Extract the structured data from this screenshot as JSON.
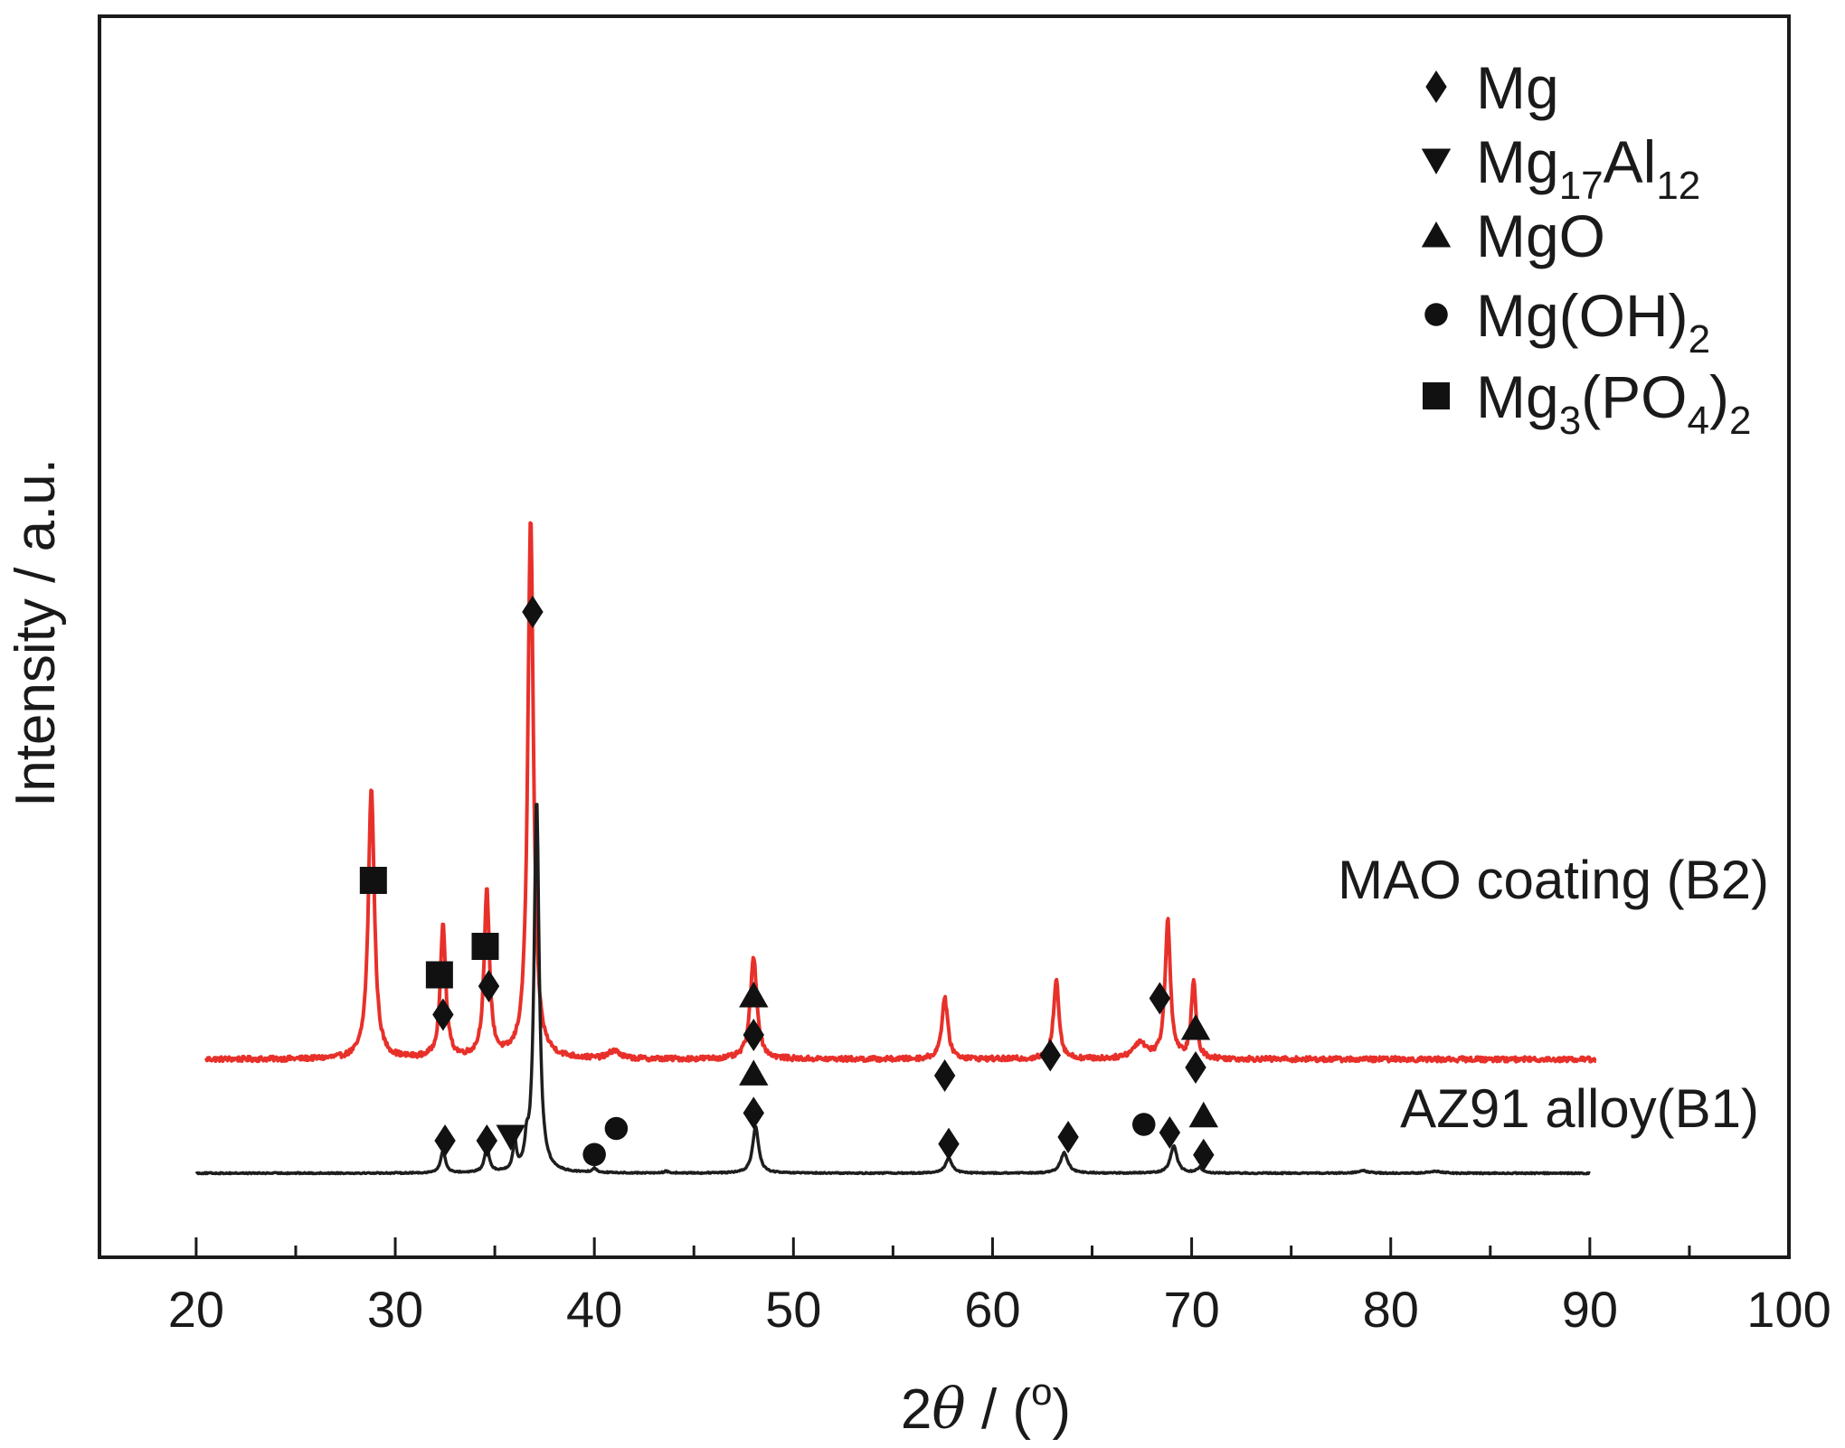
{
  "chart_data": {
    "type": "line",
    "title": "",
    "xlabel": {
      "prefix": "2",
      "italic": "θ",
      "suffix": " / (",
      "sup": "o",
      "end": ")"
    },
    "ylabel": "Intensity / a.u.",
    "xlim": [
      15,
      100
    ],
    "xticks": [
      20,
      30,
      40,
      50,
      60,
      70,
      80,
      90,
      100
    ],
    "xtick_labels": [
      "20",
      "30",
      "40",
      "50",
      "60",
      "70",
      "80",
      "90",
      "100"
    ],
    "minor_tick_step": 5,
    "y_ticks_shown": false,
    "grid": false,
    "legend": {
      "placement": "top-right",
      "entries": [
        {
          "marker": "diamond",
          "parts": [
            {
              "t": "Mg"
            }
          ]
        },
        {
          "marker": "triangle-down",
          "parts": [
            {
              "t": "Mg"
            },
            {
              "t": "17",
              "sub": true
            },
            {
              "t": "Al"
            },
            {
              "t": "12",
              "sub": true
            }
          ]
        },
        {
          "marker": "triangle-up",
          "parts": [
            {
              "t": "MgO"
            }
          ]
        },
        {
          "marker": "circle",
          "parts": [
            {
              "t": "Mg(OH)"
            },
            {
              "t": "2",
              "sub": true
            }
          ]
        },
        {
          "marker": "square",
          "parts": [
            {
              "t": "Mg"
            },
            {
              "t": "3",
              "sub": true
            },
            {
              "t": "(PO"
            },
            {
              "t": "4",
              "sub": true
            },
            {
              "t": ")"
            },
            {
              "t": "2",
              "sub": true
            }
          ]
        }
      ]
    },
    "series": [
      {
        "name": "MAO coating (B2)",
        "color": "#e8302a",
        "x_range": [
          20.5,
          90.3
        ],
        "baseline": 0.28,
        "noise": 0.006,
        "peaks": [
          {
            "x": 28.8,
            "h": 0.67,
            "w": 0.18
          },
          {
            "x": 32.4,
            "h": 0.33,
            "w": 0.16
          },
          {
            "x": 34.6,
            "h": 0.41,
            "w": 0.16
          },
          {
            "x": 36.8,
            "h": 1.33,
            "w": 0.17
          },
          {
            "x": 41.0,
            "h": 0.02,
            "w": 0.3
          },
          {
            "x": 48.0,
            "h": 0.25,
            "w": 0.2
          },
          {
            "x": 57.6,
            "h": 0.15,
            "w": 0.18
          },
          {
            "x": 63.2,
            "h": 0.2,
            "w": 0.16
          },
          {
            "x": 67.4,
            "h": 0.04,
            "w": 0.4
          },
          {
            "x": 68.8,
            "h": 0.34,
            "w": 0.16
          },
          {
            "x": 70.1,
            "h": 0.19,
            "w": 0.14
          }
        ],
        "markers": [
          {
            "x": 28.9,
            "h": 0.72,
            "symbols": [
              "square"
            ]
          },
          {
            "x": 32.4,
            "h": 0.39,
            "symbols": [
              "diamond",
              "square"
            ]
          },
          {
            "x": 34.7,
            "h": 0.46,
            "symbols": [
              "diamond",
              "square"
            ]
          },
          {
            "x": 36.9,
            "h": 1.38,
            "symbols": [
              "diamond"
            ]
          },
          {
            "x": 41.1,
            "h": 0.11,
            "symbols": [
              "circle"
            ]
          },
          {
            "x": 48.0,
            "h": 0.34,
            "symbols": [
              "diamond",
              "triangle-up"
            ]
          },
          {
            "x": 57.6,
            "h": 0.24,
            "symbols": [
              "diamond"
            ]
          },
          {
            "x": 62.9,
            "h": 0.29,
            "symbols": [
              "diamond"
            ]
          },
          {
            "x": 67.6,
            "h": 0.12,
            "symbols": [
              "circle"
            ]
          },
          {
            "x": 68.4,
            "h": 0.43,
            "symbols": [
              "diamond"
            ]
          },
          {
            "x": 70.2,
            "h": 0.26,
            "symbols": [
              "diamond",
              "triangle-up"
            ]
          }
        ]
      },
      {
        "name": "AZ91 alloy(B1)",
        "color": "#1e1e1e",
        "x_range": [
          20.0,
          90.0
        ],
        "baseline": 0.0,
        "noise": 0.0015,
        "peaks": [
          {
            "x": 32.4,
            "h": 0.055,
            "w": 0.14
          },
          {
            "x": 34.6,
            "h": 0.06,
            "w": 0.14
          },
          {
            "x": 36.0,
            "h": 0.07,
            "w": 0.1
          },
          {
            "x": 36.6,
            "h": 0.05,
            "w": 0.1
          },
          {
            "x": 37.1,
            "h": 0.92,
            "w": 0.15
          },
          {
            "x": 40.0,
            "h": 0.01,
            "w": 0.15
          },
          {
            "x": 43.6,
            "h": 0.004,
            "w": 0.15
          },
          {
            "x": 48.1,
            "h": 0.115,
            "w": 0.18
          },
          {
            "x": 57.8,
            "h": 0.037,
            "w": 0.2
          },
          {
            "x": 63.6,
            "h": 0.05,
            "w": 0.22
          },
          {
            "x": 69.1,
            "h": 0.067,
            "w": 0.2
          },
          {
            "x": 70.4,
            "h": 0.013,
            "w": 0.18
          },
          {
            "x": 78.6,
            "h": 0.006,
            "w": 0.3
          },
          {
            "x": 82.2,
            "h": 0.005,
            "w": 0.35
          }
        ],
        "markers": [
          {
            "x": 32.5,
            "h": 0.08,
            "symbols": [
              "diamond"
            ]
          },
          {
            "x": 34.6,
            "h": 0.08,
            "symbols": [
              "diamond"
            ]
          },
          {
            "x": 35.8,
            "h": 0.089,
            "symbols": [
              "triangle-down"
            ]
          },
          {
            "x": 40.0,
            "h": 0.046,
            "symbols": [
              "circle"
            ]
          },
          {
            "x": 48.0,
            "h": 0.148,
            "symbols": [
              "diamond",
              "triangle-up"
            ]
          },
          {
            "x": 57.8,
            "h": 0.072,
            "symbols": [
              "diamond"
            ]
          },
          {
            "x": 63.8,
            "h": 0.089,
            "symbols": [
              "diamond"
            ]
          },
          {
            "x": 68.9,
            "h": 0.1,
            "symbols": [
              "diamond"
            ]
          },
          {
            "x": 70.6,
            "h": 0.045,
            "symbols": [
              "diamond",
              "triangle-up"
            ]
          }
        ]
      }
    ]
  }
}
